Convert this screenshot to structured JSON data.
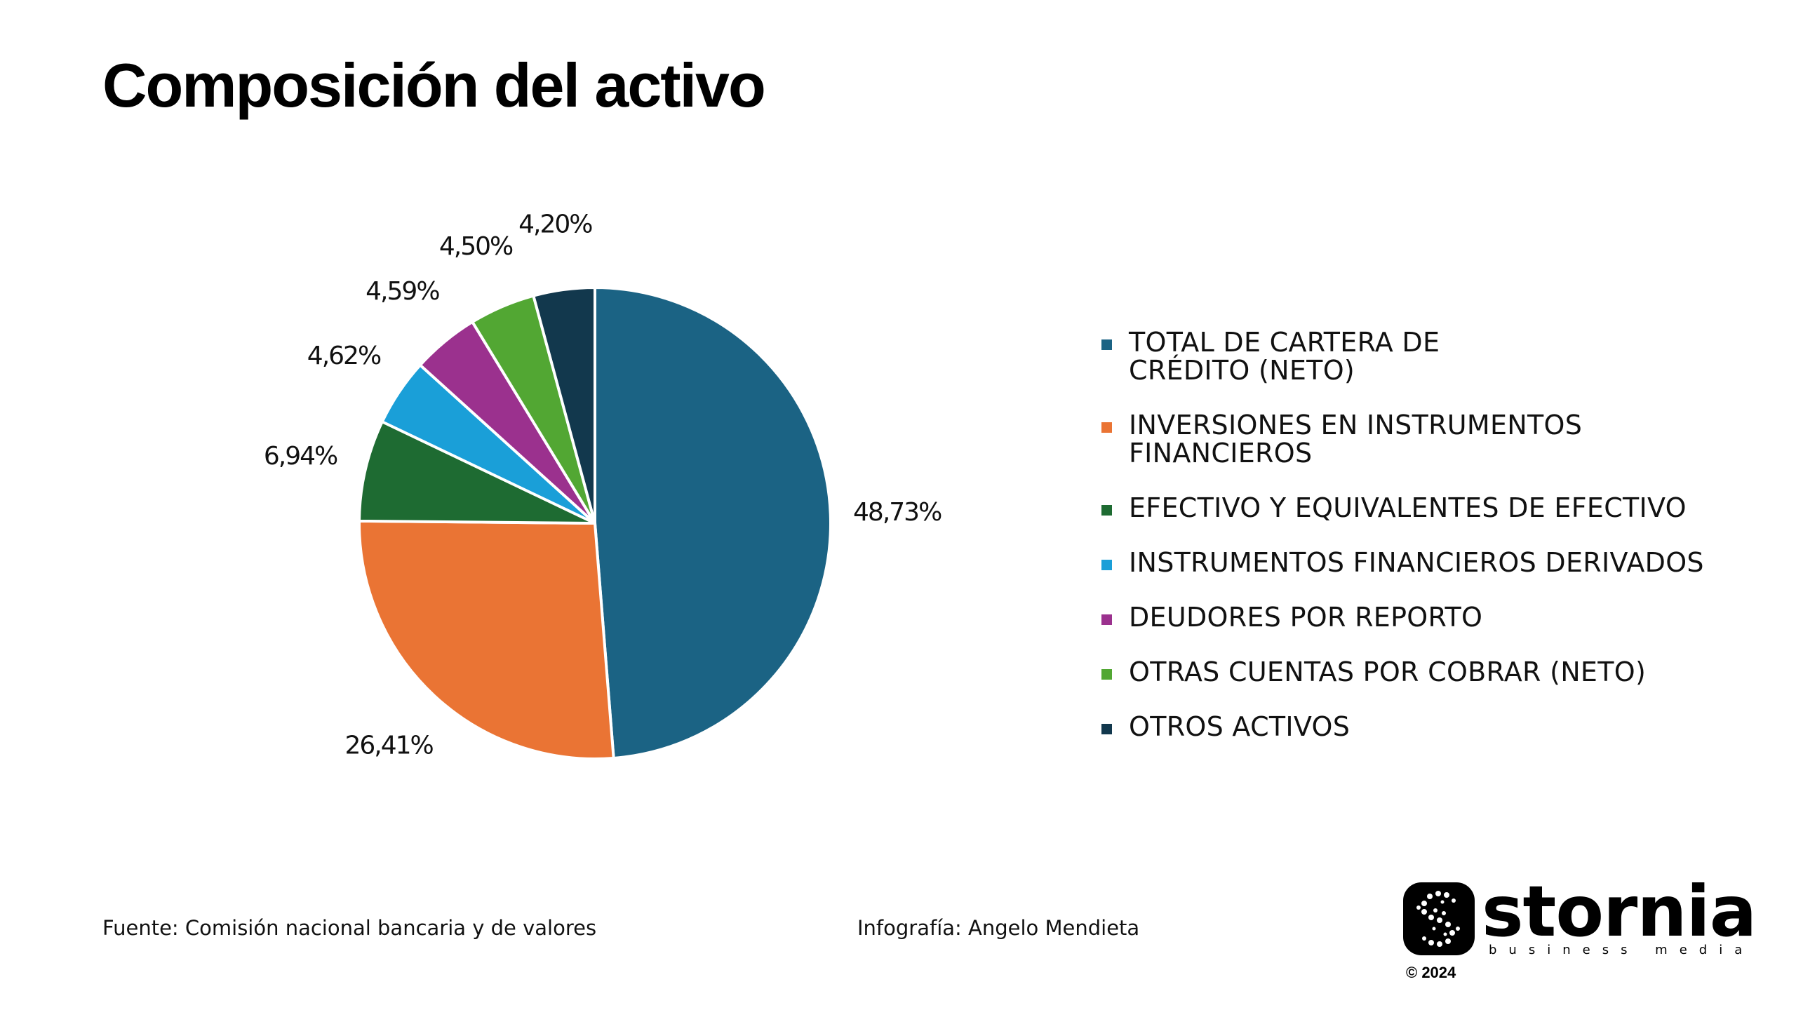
{
  "chart_data": {
    "type": "pie",
    "title": "Composición del activo",
    "slices": [
      {
        "label": "TOTAL DE CARTERA DE\nCRÉDITO (NETO)",
        "value": 48.73,
        "value_label": "48,73%",
        "color": "#1b6384"
      },
      {
        "label": "INVERSIONES EN INSTRUMENTOS\nFINANCIEROS",
        "value": 26.41,
        "value_label": "26,41%",
        "color": "#ea7434"
      },
      {
        "label": "EFECTIVO Y EQUIVALENTES DE EFECTIVO",
        "value": 6.94,
        "value_label": "6,94%",
        "color": "#1e6b32"
      },
      {
        "label": "INSTRUMENTOS FINANCIEROS DERIVADOS",
        "value": 4.62,
        "value_label": "4,62%",
        "color": "#1a9fd8"
      },
      {
        "label": "DEUDORES POR REPORTO",
        "value": 4.59,
        "value_label": "4,59%",
        "color": "#9b318e"
      },
      {
        "label": "OTRAS CUENTAS POR COBRAR (NETO)",
        "value": 4.5,
        "value_label": "4,50%",
        "color": "#52a733"
      },
      {
        "label": "OTROS ACTIVOS",
        "value": 4.2,
        "value_label": "4,20%",
        "color": "#12384d"
      }
    ],
    "legend_position": "right"
  },
  "footer": {
    "source": "Fuente: Comisión nacional bancaria y de valores",
    "credit": "Infografía: Angelo Mendieta"
  },
  "logo": {
    "name": "stornia",
    "tagline": "business media",
    "copyright": "© 2024"
  }
}
